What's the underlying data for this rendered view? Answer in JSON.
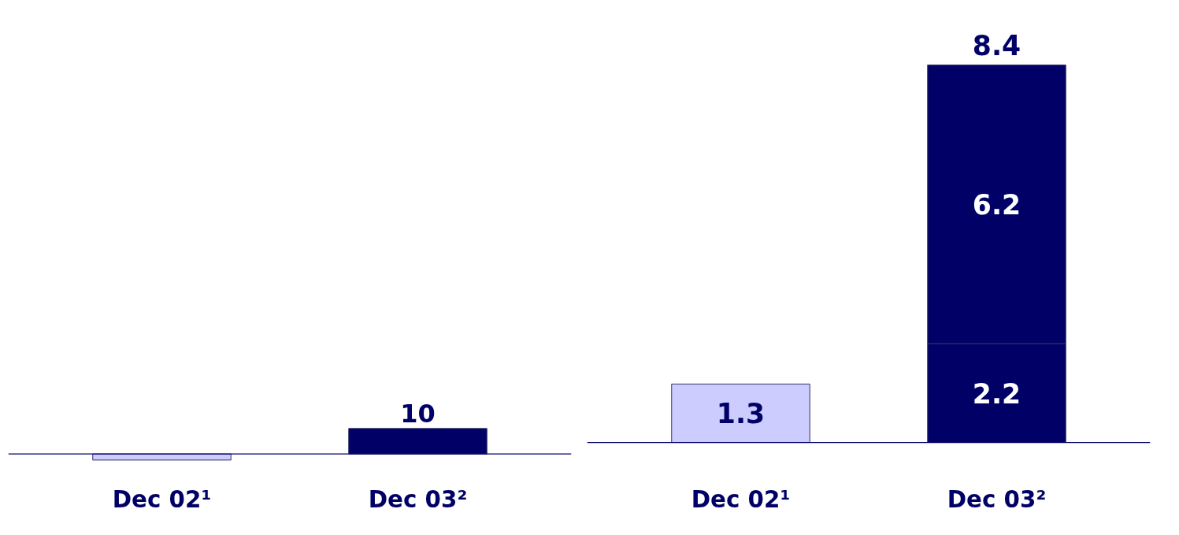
{
  "chart_data": [
    {
      "type": "bar",
      "categories": [
        "Dec 02¹",
        "Dec 03²"
      ],
      "values": [
        -2.4,
        10
      ],
      "colors": [
        "#ccccff",
        "#000066"
      ],
      "value_labels": [
        null,
        "10"
      ],
      "grid": false
    },
    {
      "type": "bar",
      "categories": [
        "Dec 02¹",
        "Dec 03²"
      ],
      "stacked": true,
      "data_labels": true,
      "grid": false,
      "series": [
        {
          "colors": [
            "#ccccff",
            "#000066"
          ],
          "values": [
            1.3,
            2.2
          ]
        },
        {
          "colors": [
            "#000066",
            "#000066"
          ],
          "values": [
            null,
            6.2
          ]
        }
      ],
      "totals": [
        null,
        "8.4"
      ]
    }
  ]
}
